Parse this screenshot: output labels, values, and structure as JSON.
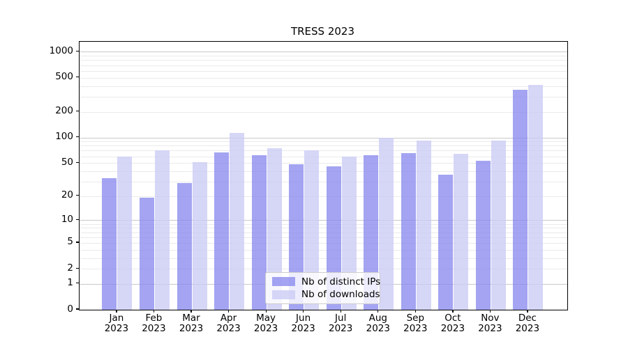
{
  "title": "TRESS 2023",
  "legend": {
    "items": [
      {
        "label": "Nb of distinct IPs"
      },
      {
        "label": "Nb of downloads"
      }
    ]
  },
  "chart_data": {
    "type": "bar",
    "title": "TRESS 2023",
    "categories": [
      {
        "month": "Jan",
        "year": "2023"
      },
      {
        "month": "Feb",
        "year": "2023"
      },
      {
        "month": "Mar",
        "year": "2023"
      },
      {
        "month": "Apr",
        "year": "2023"
      },
      {
        "month": "May",
        "year": "2023"
      },
      {
        "month": "Jun",
        "year": "2023"
      },
      {
        "month": "Jul",
        "year": "2023"
      },
      {
        "month": "Aug",
        "year": "2023"
      },
      {
        "month": "Sep",
        "year": "2023"
      },
      {
        "month": "Oct",
        "year": "2023"
      },
      {
        "month": "Nov",
        "year": "2023"
      },
      {
        "month": "Dec",
        "year": "2023"
      }
    ],
    "series": [
      {
        "name": "Nb of distinct IPs",
        "color": "#8888ee",
        "alpha": 0.76,
        "values": [
          33,
          19,
          29,
          67,
          62,
          48,
          46,
          62,
          65,
          36,
          53,
          360
        ]
      },
      {
        "name": "Nb of downloads",
        "color": "#ccccf5",
        "alpha": 0.8,
        "values": [
          60,
          70,
          51,
          114,
          74,
          71,
          60,
          100,
          92,
          64,
          92,
          415
        ]
      }
    ],
    "xlabel": "",
    "ylabel": "",
    "y_scale": "log1p",
    "ylim": [
      0,
      1300
    ],
    "y_tick_labels": [
      "1000",
      "500",
      "200",
      "100",
      "50",
      "20",
      "10",
      "5",
      "2",
      "1",
      "0"
    ],
    "y_tick_values": [
      1000,
      500,
      200,
      100,
      50,
      20,
      10,
      5,
      2,
      1,
      0
    ],
    "grid": "on",
    "grid_major_color": "#c9c9c9",
    "grid_minor_color": "#eaeaea",
    "legend_position": "lower center inside"
  }
}
